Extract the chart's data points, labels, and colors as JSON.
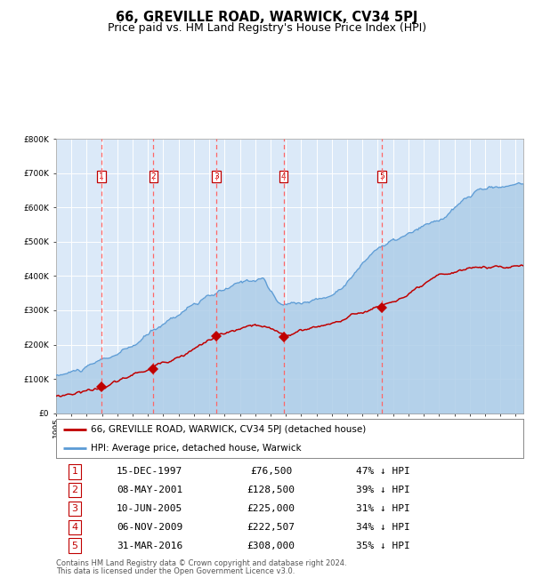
{
  "title": "66, GREVILLE ROAD, WARWICK, CV34 5PJ",
  "subtitle": "Price paid vs. HM Land Registry's House Price Index (HPI)",
  "footnote1": "Contains HM Land Registry data © Crown copyright and database right 2024.",
  "footnote2": "This data is licensed under the Open Government Licence v3.0.",
  "legend_line1": "66, GREVILLE ROAD, WARWICK, CV34 5PJ (detached house)",
  "legend_line2": "HPI: Average price, detached house, Warwick",
  "sales": [
    {
      "num": 1,
      "date": "15-DEC-1997",
      "price": 76500,
      "pct": "47% ↓ HPI",
      "year": 1997.96
    },
    {
      "num": 2,
      "date": "08-MAY-2001",
      "price": 128500,
      "pct": "39% ↓ HPI",
      "year": 2001.36
    },
    {
      "num": 3,
      "date": "10-JUN-2005",
      "price": 225000,
      "pct": "31% ↓ HPI",
      "year": 2005.44
    },
    {
      "num": 4,
      "date": "06-NOV-2009",
      "price": 222507,
      "pct": "34% ↓ HPI",
      "year": 2009.85
    },
    {
      "num": 5,
      "date": "31-MAR-2016",
      "price": 308000,
      "pct": "35% ↓ HPI",
      "year": 2016.25
    }
  ],
  "hpi_color": "#5b9bd5",
  "hpi_fill_color": "#aecde8",
  "price_color": "#c00000",
  "dashed_line_color": "#ff6666",
  "background_plot": "#dbe9f8",
  "background_fig": "#ffffff",
  "grid_color": "#ffffff",
  "ylim": [
    0,
    800000
  ],
  "xlim_start": 1995,
  "xlim_end": 2025.5,
  "title_fontsize": 10.5,
  "subtitle_fontsize": 9
}
